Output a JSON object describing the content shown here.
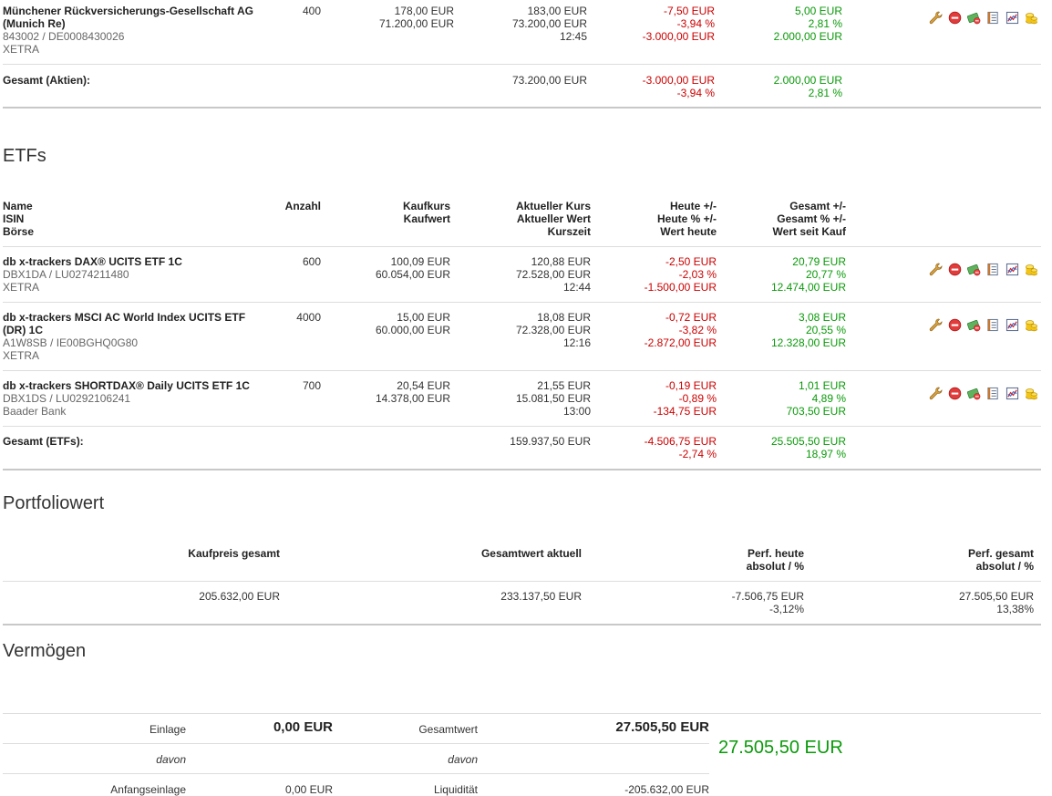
{
  "aktien": {
    "rows": [
      {
        "name": "Münchener Rückversicherungs-Gesellschaft AG",
        "name2": "(Munich Re)",
        "isin": "843002 / DE0008430026",
        "boerse": "XETRA",
        "anzahl": "400",
        "kaufkurs": "178,00 EUR",
        "kaufwert": "71.200,00 EUR",
        "kurs": "183,00 EUR",
        "wert": "73.200,00 EUR",
        "zeit": "12:45",
        "heute": "-7,50 EUR",
        "heute_pct": "-3,94 %",
        "wert_heute": "-3.000,00 EUR",
        "gesamt": "5,00 EUR",
        "gesamt_pct": "2,81 %",
        "wert_kauf": "2.000,00 EUR"
      }
    ],
    "total": {
      "label": "Gesamt (Aktien):",
      "wert": "73.200,00 EUR",
      "heute": "-3.000,00 EUR",
      "heute_pct": "-3,94 %",
      "gesamt": "2.000,00 EUR",
      "gesamt_pct": "2,81 %"
    }
  },
  "etfs": {
    "title": "ETFs",
    "headers": {
      "name": "Name",
      "isin": "ISIN",
      "boerse": "Börse",
      "anzahl": "Anzahl",
      "kaufkurs": "Kaufkurs",
      "kaufwert": "Kaufwert",
      "kurs": "Aktueller Kurs",
      "wert": "Aktueller Wert",
      "zeit": "Kurszeit",
      "heute": "Heute +/-",
      "heute_pct": "Heute % +/-",
      "wert_heute": "Wert heute",
      "gesamt": "Gesamt +/-",
      "gesamt_pct": "Gesamt % +/-",
      "wert_kauf": "Wert seit Kauf"
    },
    "rows": [
      {
        "name": "db x-trackers DAX® UCITS ETF 1C",
        "name2": "",
        "isin": "DBX1DA / LU0274211480",
        "boerse": "XETRA",
        "anzahl": "600",
        "kaufkurs": "100,09 EUR",
        "kaufwert": "60.054,00 EUR",
        "kurs": "120,88 EUR",
        "wert": "72.528,00 EUR",
        "zeit": "12:44",
        "heute": "-2,50 EUR",
        "heute_pct": "-2,03 %",
        "wert_heute": "-1.500,00 EUR",
        "gesamt": "20,79 EUR",
        "gesamt_pct": "20,77 %",
        "wert_kauf": "12.474,00 EUR"
      },
      {
        "name": "db x-trackers MSCI AC World Index UCITS ETF",
        "name2": "(DR) 1C",
        "isin": "A1W8SB / IE00BGHQ0G80",
        "boerse": "XETRA",
        "anzahl": "4000",
        "kaufkurs": "15,00 EUR",
        "kaufwert": "60.000,00 EUR",
        "kurs": "18,08 EUR",
        "wert": "72.328,00 EUR",
        "zeit": "12:16",
        "heute": "-0,72 EUR",
        "heute_pct": "-3,82 %",
        "wert_heute": "-2.872,00 EUR",
        "gesamt": "3,08 EUR",
        "gesamt_pct": "20,55 %",
        "wert_kauf": "12.328,00 EUR"
      },
      {
        "name": "db x-trackers SHORTDAX® Daily UCITS ETF 1C",
        "name2": "",
        "isin": "DBX1DS / LU0292106241",
        "boerse": "Baader Bank",
        "anzahl": "700",
        "kaufkurs": "20,54 EUR",
        "kaufwert": "14.378,00 EUR",
        "kurs": "21,55 EUR",
        "wert": "15.081,50 EUR",
        "zeit": "13:00",
        "heute": "-0,19 EUR",
        "heute_pct": "-0,89 %",
        "wert_heute": "-134,75 EUR",
        "gesamt": "1,01 EUR",
        "gesamt_pct": "4,89 %",
        "wert_kauf": "703,50 EUR"
      }
    ],
    "total": {
      "label": "Gesamt (ETFs):",
      "wert": "159.937,50 EUR",
      "heute": "-4.506,75 EUR",
      "heute_pct": "-2,74 %",
      "gesamt": "25.505,50 EUR",
      "gesamt_pct": "18,97 %"
    }
  },
  "portfolio": {
    "title": "Portfoliowert",
    "h_kaufpreis": "Kaufpreis gesamt",
    "h_gesamtwert": "Gesamtwert aktuell",
    "h_perf_heute": "Perf. heute",
    "h_perf_heute_sub": "absolut / %",
    "h_perf_gesamt": "Perf. gesamt",
    "h_perf_gesamt_sub": "absolut / %",
    "kaufpreis": "205.632,00 EUR",
    "gesamtwert": "233.137,50 EUR",
    "perf_heute_abs": "-7.506,75 EUR",
    "perf_heute_pct": "-3,12%",
    "perf_gesamt_abs": "27.505,50 EUR",
    "perf_gesamt_pct": "13,38%"
  },
  "vermoegen": {
    "title": "Vermögen",
    "einlage_label": "Einlage",
    "einlage": "0,00 EUR",
    "gesamtwert_label": "Gesamtwert",
    "gesamtwert": "27.505,50 EUR",
    "davon1": "davon",
    "davon2": "davon",
    "anfangseinlage_label": "Anfangseinlage",
    "anfangseinlage": "0,00 EUR",
    "liquiditaet_label": "Liquidität",
    "liquiditaet": "-205.632,00 EUR",
    "big_value": "27.505,50 EUR"
  },
  "icon_names": [
    "wrench-icon",
    "remove-icon",
    "buy-sell-icon",
    "notes-icon",
    "chart-icon",
    "coins-icon"
  ],
  "colors": {
    "negative": "#cc0000",
    "positive": "#0a9a0a"
  }
}
